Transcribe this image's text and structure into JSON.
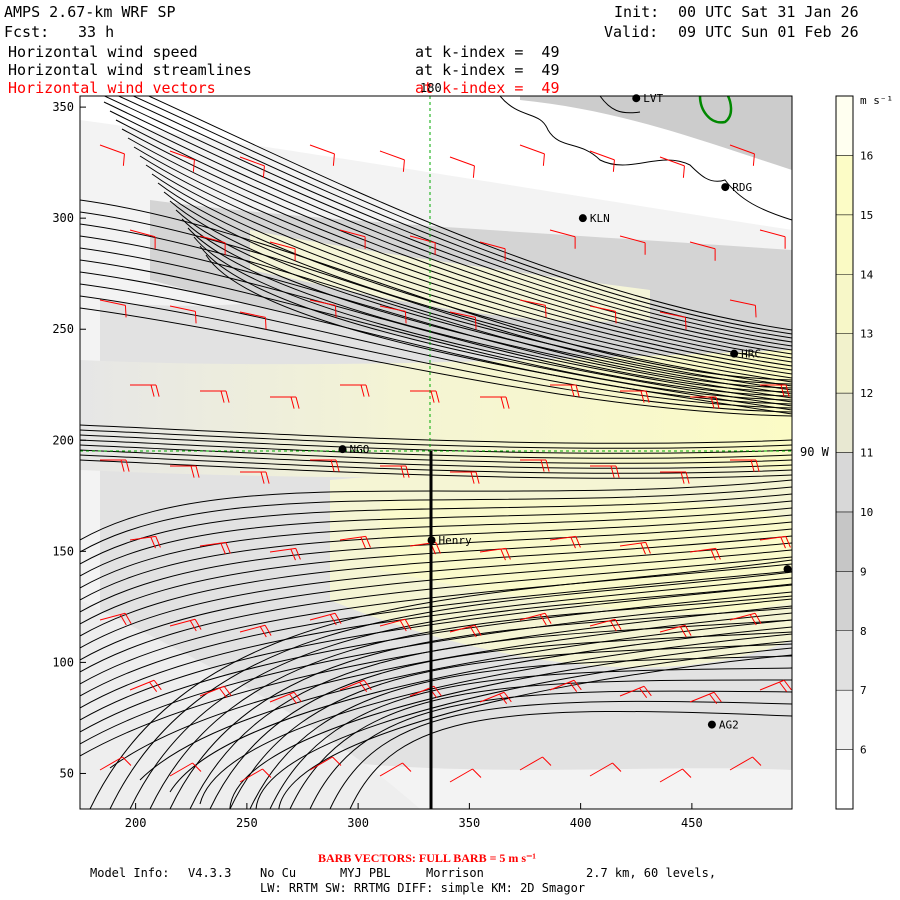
{
  "header": {
    "model_title": "AMPS 2.67-km WRF SP",
    "fcst_label": "Fcst:",
    "fcst_hours": "33 h",
    "init_label": "Init:",
    "init_value": "00 UTC Sat 31 Jan 26",
    "valid_label": "Valid:",
    "valid_value": "09 UTC Sun 01 Feb 26"
  },
  "fields": [
    {
      "name": "Horizontal wind speed",
      "level": "at k-index =  49",
      "color": "#000000"
    },
    {
      "name": "Horizontal wind streamlines",
      "level": "at k-index =  49",
      "color": "#000000"
    },
    {
      "name": "Horizontal wind vectors",
      "level": "at k-index =  49",
      "color": "#ff0000"
    }
  ],
  "map": {
    "x_ticks": [
      "200",
      "250",
      "300",
      "350",
      "400",
      "450"
    ],
    "y_ticks": [
      "350",
      "300",
      "250",
      "200",
      "150",
      "100",
      "50"
    ],
    "x_tick_values": [
      200,
      250,
      300,
      350,
      400,
      450
    ],
    "y_tick_values": [
      350,
      300,
      250,
      200,
      150,
      100,
      50
    ],
    "x_range": [
      175,
      495
    ],
    "y_range": [
      34,
      355
    ],
    "meridian_label": "180",
    "parallel_label": "90 W",
    "meridian_x": 333,
    "parallel_y": 196,
    "colors": {
      "barb": "#ff0000",
      "streamline": "#000000",
      "coast": "#000000",
      "grid": "#00aa00",
      "ice": "#008800"
    },
    "stations": [
      {
        "id": "LVT",
        "x": 425,
        "y": 354
      },
      {
        "id": "RDG",
        "x": 465,
        "y": 314
      },
      {
        "id": "KLN",
        "x": 401,
        "y": 300
      },
      {
        "id": "HRC",
        "x": 469,
        "y": 239
      },
      {
        "id": "NGO",
        "x": 293,
        "y": 196
      },
      {
        "id": "Henry",
        "x": 333,
        "y": 155
      },
      {
        "id": "",
        "x": 493,
        "y": 142
      },
      {
        "id": "AG2",
        "x": 459,
        "y": 72
      }
    ]
  },
  "colorbar": {
    "unit": "m s⁻¹",
    "levels": [
      "6",
      "7",
      "8",
      "9",
      "10",
      "11",
      "12",
      "13",
      "14",
      "15",
      "16"
    ],
    "colors": [
      "#ffffff",
      "#f0f0f0",
      "#e0e0e0",
      "#d2d2d2",
      "#c6c6c6",
      "#d8d8d8",
      "#e8e8d2",
      "#f2f2cc",
      "#f7f7c8",
      "#fafac4",
      "#fcfcc6",
      "#fffff0"
    ]
  },
  "footer": {
    "barb_label": "BARB VECTORS:  FULL BARB = 5 m s⁻¹",
    "model_info_label": "Model Info:",
    "model_version": "V4.3.3",
    "cumulus": "No Cu",
    "pbl": "MYJ PBL",
    "microphysics": "Morrison",
    "resolution": "2.7 km,  60 levels,",
    "radiation_line": "LW: RRTM SW: RRTMG   DIFF: simple KM: 2D Smagor"
  }
}
